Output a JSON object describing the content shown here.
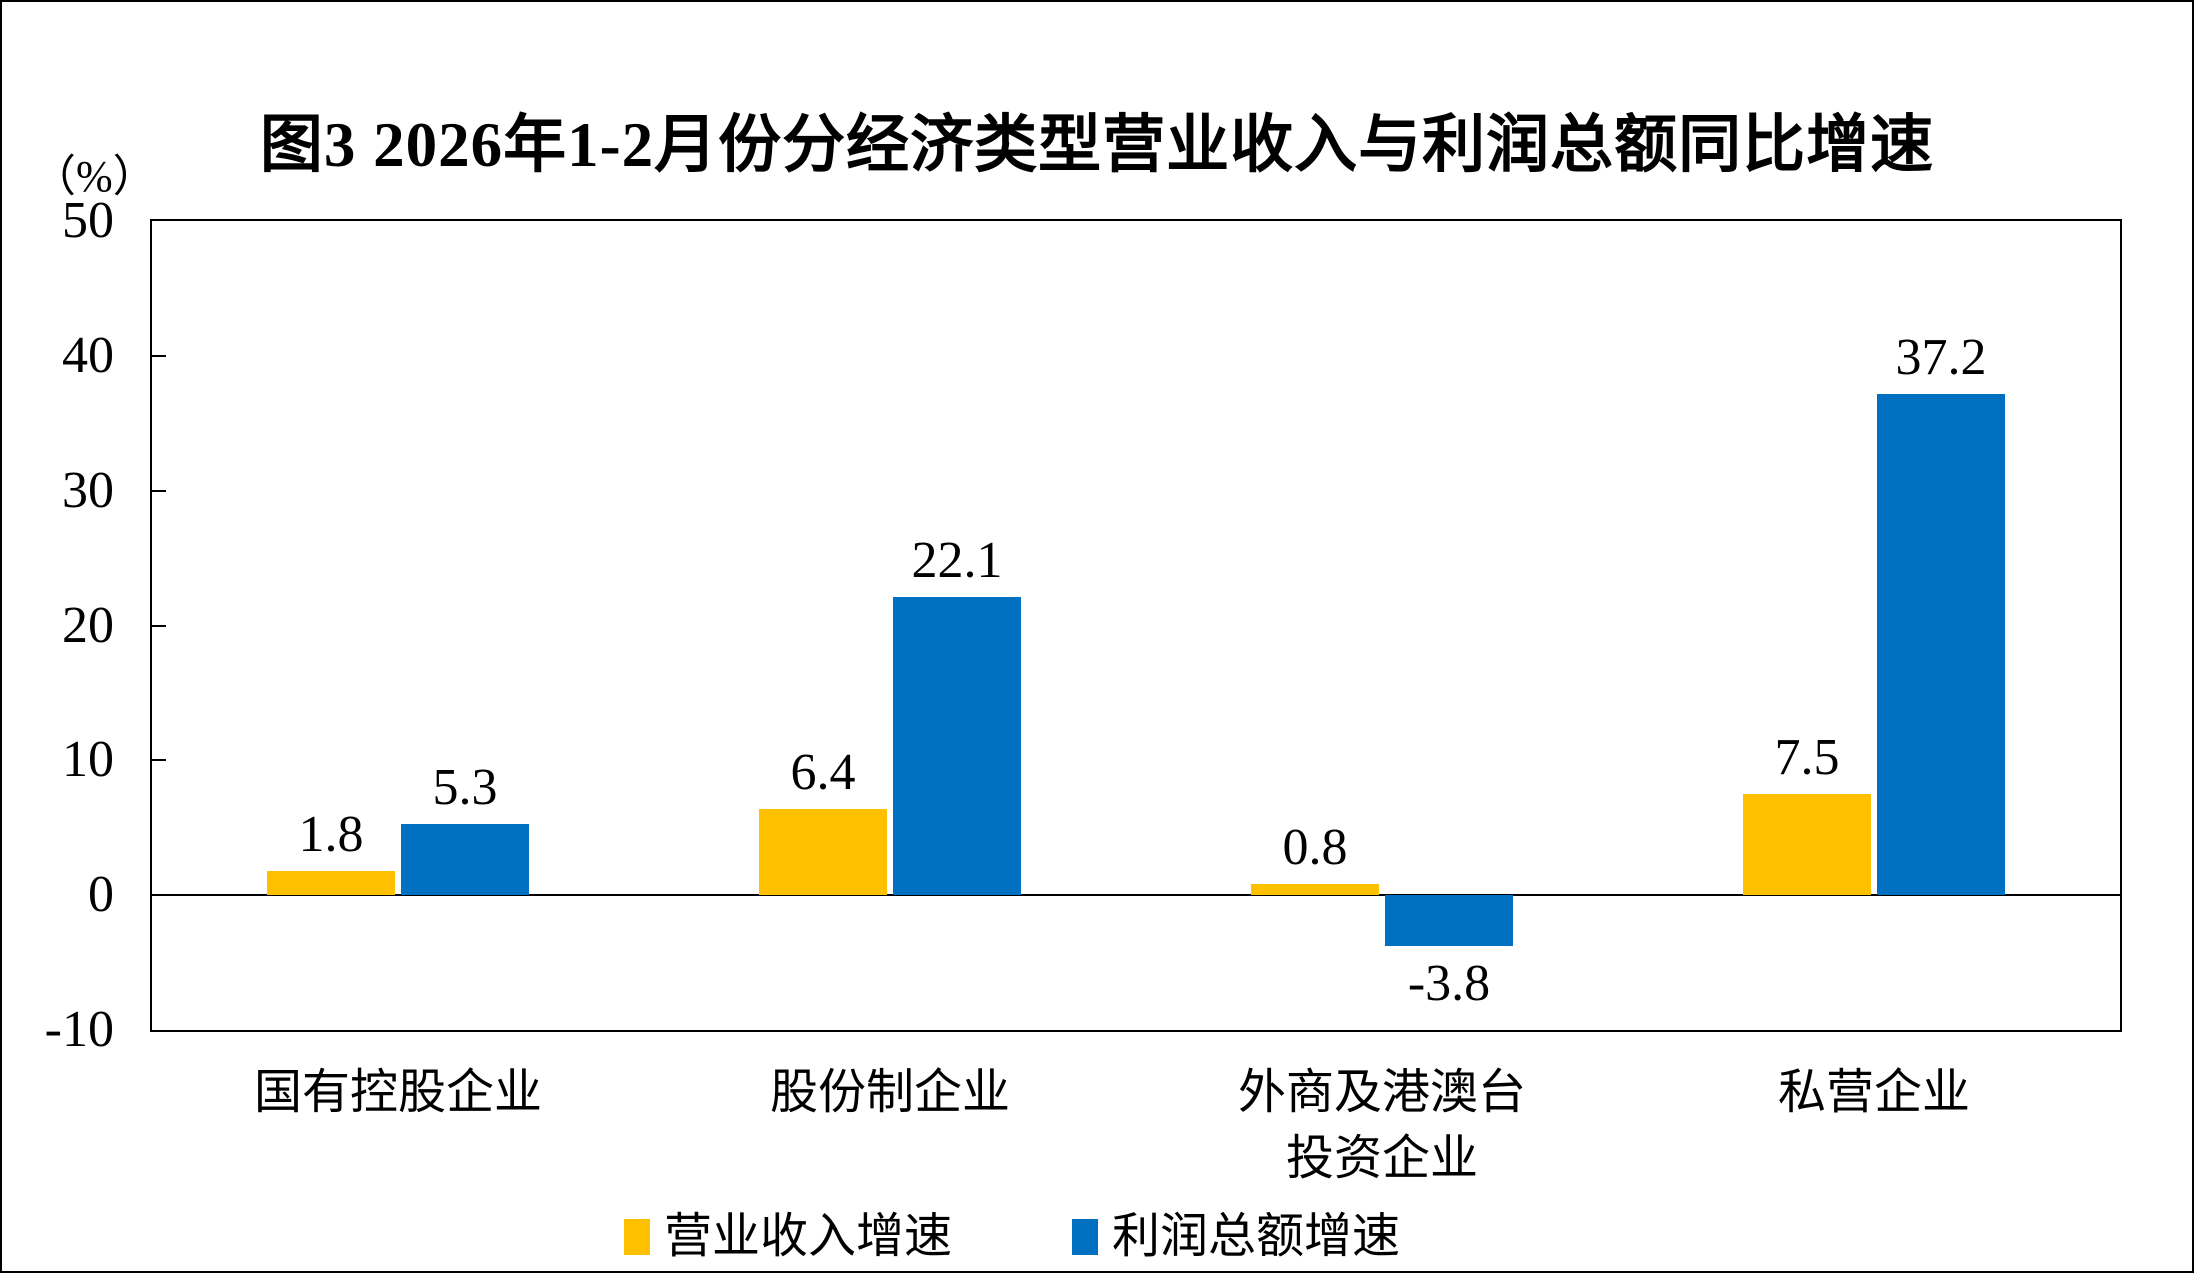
{
  "chart_data": {
    "type": "bar",
    "title": "图3  2026年1-2月份分经济类型营业收入与利润总额同比增速",
    "unit_label": "（%）",
    "categories": [
      "国有控股企业",
      "股份制企业",
      "外商及港澳台\n投资企业",
      "私营企业"
    ],
    "series": [
      {
        "name": "营业收入增速",
        "color": "#FFC000",
        "values": [
          1.8,
          6.4,
          0.8,
          7.5
        ]
      },
      {
        "name": "利润总额增速",
        "color": "#0070C0",
        "values": [
          5.3,
          22.1,
          -3.8,
          37.2
        ]
      }
    ],
    "data_labels": [
      [
        "1.8",
        "6.4",
        "0.8",
        "7.5"
      ],
      [
        "5.3",
        "22.1",
        "-3.8",
        "37.2"
      ]
    ],
    "ylim": [
      -10,
      50
    ],
    "yticks": [
      "50",
      "40",
      "30",
      "20",
      "10",
      "0",
      "-10"
    ],
    "grid": false,
    "legend_position": "bottom",
    "axis_color": "#000000",
    "background": "#FFFFFF"
  }
}
